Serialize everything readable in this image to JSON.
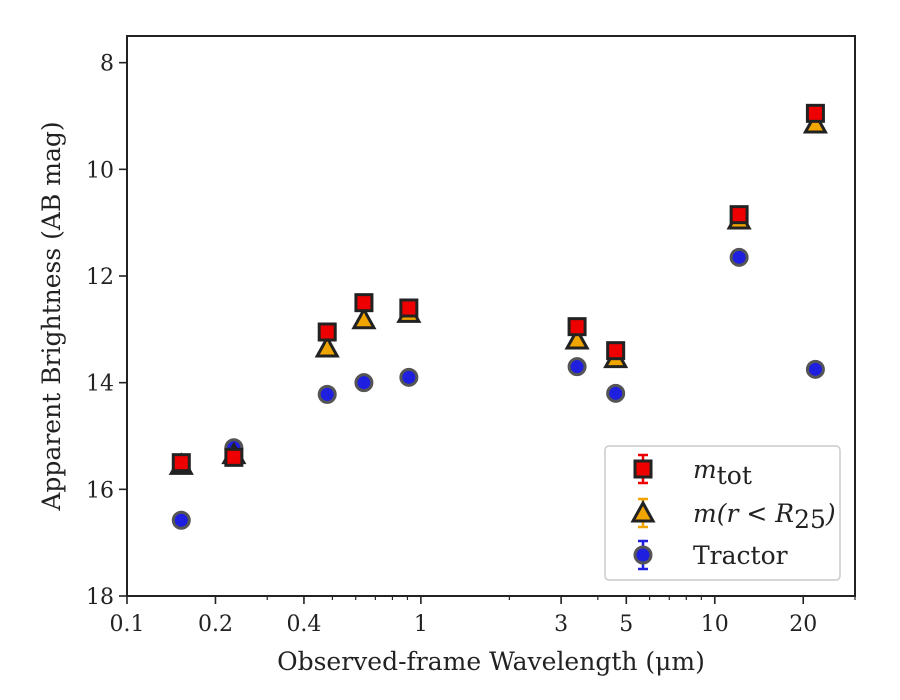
{
  "chart_data": {
    "type": "scatter",
    "xlabel": "Observed-frame Wavelength (μm)",
    "ylabel": "Apparent Brightness (AB mag)",
    "xscale": "log",
    "xlim": [
      0.1,
      30
    ],
    "ylim": [
      18,
      7.5
    ],
    "y_inverted": true,
    "xticks": [
      0.1,
      0.2,
      0.4,
      1,
      3,
      5,
      10,
      20
    ],
    "xtick_labels": [
      "0.1",
      "0.2",
      "0.4",
      "1",
      "3",
      "5",
      "10",
      "20"
    ],
    "yticks": [
      8,
      10,
      12,
      14,
      16,
      18
    ],
    "ytick_labels": [
      "8",
      "10",
      "12",
      "14",
      "16",
      "18"
    ],
    "grid": false,
    "legend_position": "bottom-right",
    "series": [
      {
        "name": "m_tot",
        "legend_main": "m",
        "legend_sub": "tot",
        "marker": "square",
        "color": "#ee0000",
        "x": [
          0.153,
          0.231,
          0.48,
          0.64,
          0.91,
          3.4,
          4.6,
          12.1,
          22.0
        ],
        "y": [
          15.5,
          15.4,
          13.05,
          12.5,
          12.6,
          12.95,
          13.4,
          10.85,
          8.95
        ]
      },
      {
        "name": "m(r < R25)",
        "legend_main": "m(r < R",
        "legend_sub": "25",
        "legend_end": ")",
        "marker": "triangle",
        "color": "#f0a500",
        "x": [
          0.153,
          0.231,
          0.48,
          0.64,
          0.91,
          3.4,
          4.6,
          12.1,
          22.0
        ],
        "y": [
          15.55,
          15.35,
          13.35,
          12.82,
          12.7,
          13.2,
          13.55,
          10.95,
          9.15
        ]
      },
      {
        "name": "Tractor",
        "marker": "circle",
        "color": "#1f1fe0",
        "x": [
          0.153,
          0.231,
          0.48,
          0.64,
          0.91,
          3.4,
          4.6,
          12.1,
          22.0
        ],
        "y": [
          16.58,
          15.22,
          14.22,
          14.0,
          13.9,
          13.7,
          14.2,
          11.65,
          13.75
        ]
      }
    ]
  }
}
